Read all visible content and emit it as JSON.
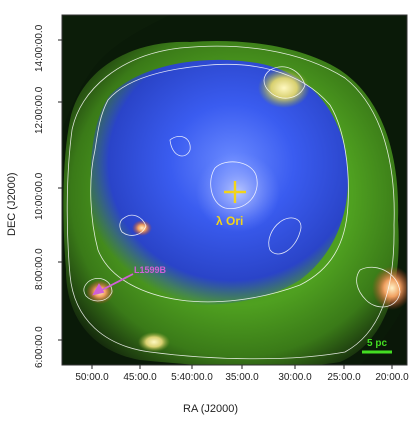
{
  "figure": {
    "xlabel": "RA (J2000)",
    "ylabel": "DEC (J2000)",
    "x_ticks": [
      "50:00.0",
      "45:00.0",
      "5:40:00.0",
      "35:00.0",
      "30:00.0",
      "25:00.0",
      "20:00.0"
    ],
    "y_ticks": [
      "14:00:00.0",
      "12:00:00.0",
      "10:00:00.0",
      "8:00:00.0",
      "6:00:00.0"
    ],
    "labels": {
      "star": "λ Ori",
      "cloud": "L1599B",
      "scale_bar": "5 pc"
    },
    "colors": {
      "background": "#0a1a08",
      "green_shell": "#4fa020",
      "blue_cavity": "#2c4fd8",
      "star_marker": "#f2d41a",
      "cloud_label": "#d060d8",
      "scale_bar": "#44dd22",
      "contour": "#ffffff",
      "hotspot": "#e87a40"
    }
  }
}
